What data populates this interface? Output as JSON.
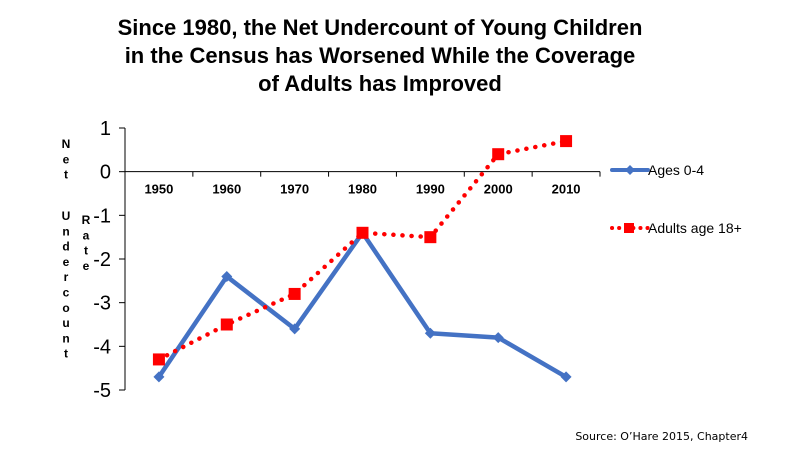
{
  "chart_data": {
    "type": "line",
    "title_lines": [
      "Since 1980, the Net Undercount of Young Children",
      "in the Census has Worsened While the Coverage",
      "of Adults has Improved"
    ],
    "ylabel_words": [
      "Net",
      "Undercount",
      "Rate"
    ],
    "xlabel": "",
    "categories": [
      "1950",
      "1960",
      "1970",
      "1980",
      "1990",
      "2000",
      "2010"
    ],
    "ylim": [
      -5,
      1
    ],
    "yticks": [
      1,
      0,
      -1,
      -2,
      -3,
      -4,
      -5
    ],
    "grid": false,
    "legend_position": "right",
    "series": [
      {
        "name": "Ages 0-4",
        "values": [
          -4.7,
          -2.4,
          -3.6,
          -1.4,
          -3.7,
          -3.8,
          -4.7
        ],
        "color": "#4472C4",
        "line_style": "solid",
        "marker": "diamond"
      },
      {
        "name": "Adults age 18+",
        "values": [
          -4.3,
          -3.5,
          -2.8,
          -1.4,
          -1.5,
          0.4,
          0.7
        ],
        "color": "#FF0000",
        "line_style": "dotted",
        "marker": "square"
      }
    ]
  },
  "source_note": "Source: O’Hare 2015, Chapter4"
}
